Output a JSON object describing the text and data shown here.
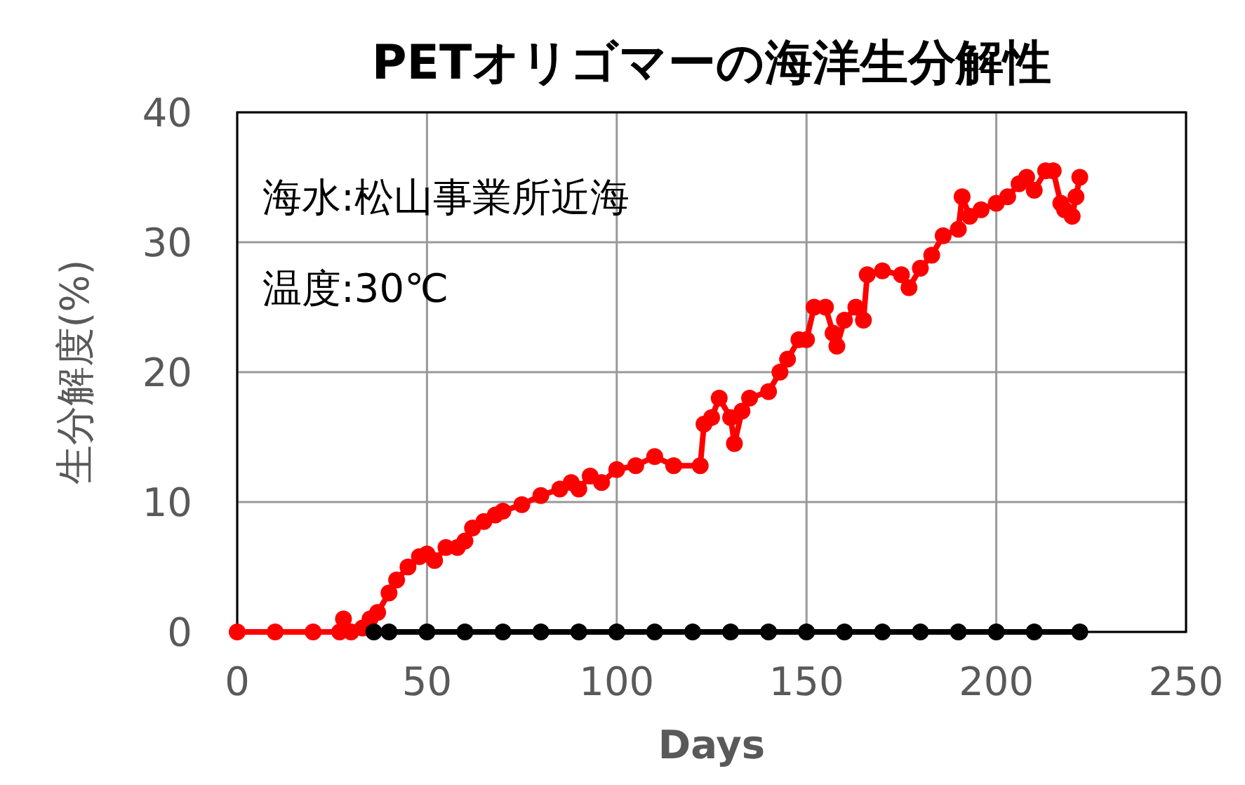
{
  "chart_data": {
    "type": "line",
    "title": "PETオリゴマーの海洋生分解性",
    "xlabel": "Days",
    "ylabel": "生分解度(%)",
    "annotations": [
      "海水:松山事業所近海",
      "温度:30℃"
    ],
    "xlim": [
      0,
      250
    ],
    "xticks": [
      0,
      50,
      100,
      150,
      200,
      250
    ],
    "ylim": [
      0,
      40
    ],
    "yticks": [
      0,
      10,
      20,
      30,
      40
    ],
    "grid": true,
    "marker": "circle",
    "line_style": "solid",
    "series": [
      {
        "color": "#000000",
        "x": [
          36,
          40,
          50,
          60,
          70,
          80,
          90,
          100,
          110,
          120,
          130,
          140,
          150,
          160,
          170,
          180,
          190,
          200,
          210,
          222
        ],
        "values": [
          0,
          0,
          0,
          0,
          0,
          0,
          0,
          0,
          0,
          0,
          0,
          0,
          0,
          0,
          0,
          0,
          0,
          0,
          0,
          0
        ]
      },
      {
        "color": "#ff0000",
        "x": [
          0,
          10,
          20,
          27,
          28,
          30,
          33,
          35,
          37,
          40,
          42,
          45,
          48,
          50,
          52,
          55,
          58,
          60,
          62,
          65,
          68,
          70,
          75,
          80,
          85,
          88,
          90,
          93,
          96,
          100,
          105,
          110,
          115,
          122,
          123,
          125,
          127,
          130,
          131,
          133,
          135,
          140,
          143,
          145,
          148,
          150,
          152,
          155,
          157,
          158,
          160,
          163,
          165,
          166,
          170,
          175,
          177,
          180,
          183,
          186,
          190,
          191,
          193,
          196,
          200,
          203,
          206,
          208,
          210,
          213,
          215,
          217,
          218,
          220,
          221,
          222
        ],
        "values": [
          0,
          0,
          0,
          0,
          1,
          0,
          0.3,
          1,
          1.5,
          3,
          4,
          5,
          5.8,
          6,
          5.5,
          6.5,
          6.5,
          7,
          8,
          8.5,
          9,
          9.3,
          9.8,
          10.5,
          11,
          11.5,
          11,
          12,
          11.5,
          12.5,
          12.8,
          13.5,
          12.8,
          12.8,
          16,
          16.5,
          18,
          16.5,
          14.5,
          17,
          18,
          18.5,
          20,
          21,
          22.5,
          22.5,
          25,
          25,
          23,
          22,
          24,
          25,
          24,
          27.5,
          27.8,
          27.5,
          26.5,
          28,
          29,
          30.5,
          31,
          33.5,
          32,
          32.5,
          33,
          33.5,
          34.5,
          35,
          34,
          35.5,
          35.5,
          33,
          32.5,
          32,
          33.5,
          35
        ]
      }
    ]
  }
}
